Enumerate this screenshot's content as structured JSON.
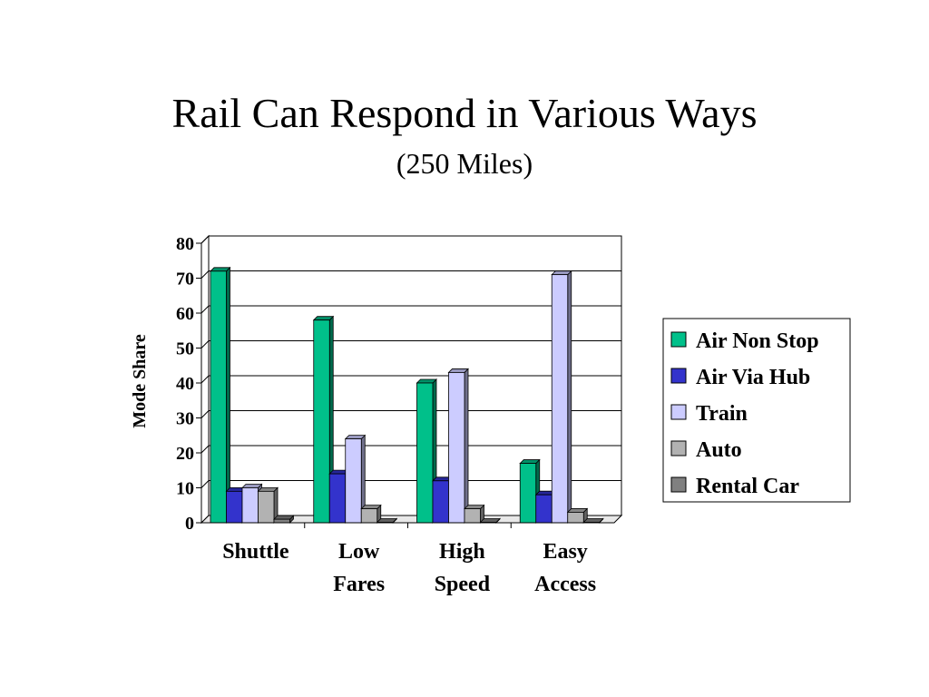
{
  "slide": {
    "title": "Rail Can Respond in Various Ways",
    "subtitle": "(250 Miles)"
  },
  "chart_data": {
    "type": "bar",
    "title": "Rail Can Respond in Various Ways",
    "subtitle": "(250 Miles)",
    "ylabel": "Mode Share",
    "xlabel": "",
    "ylim": [
      0,
      80
    ],
    "yticks": [
      0,
      10,
      20,
      30,
      40,
      50,
      60,
      70,
      80
    ],
    "grid": true,
    "legend_position": "right",
    "categories": [
      [
        "Shuttle"
      ],
      [
        "Low",
        "Fares"
      ],
      [
        "High",
        "Speed"
      ],
      [
        "Easy",
        "Access"
      ]
    ],
    "series": [
      {
        "name": "Air Non Stop",
        "color": "#00C08A",
        "values": [
          72,
          58,
          40,
          17
        ]
      },
      {
        "name": "Air Via Hub",
        "color": "#3333CC",
        "values": [
          9,
          14,
          12,
          8
        ]
      },
      {
        "name": "Train",
        "color": "#CCCCFF",
        "values": [
          10,
          24,
          43,
          71
        ]
      },
      {
        "name": "Auto",
        "color": "#B2B2B2",
        "values": [
          9,
          4,
          4,
          3
        ]
      },
      {
        "name": "Rental Car",
        "color": "#808080",
        "values": [
          1,
          0,
          0,
          0
        ]
      }
    ]
  }
}
